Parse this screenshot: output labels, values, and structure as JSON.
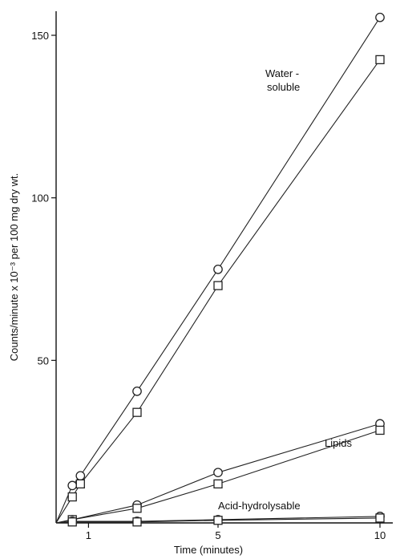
{
  "chart_data": {
    "type": "line",
    "title": "",
    "xlabel": "Time (minutes)",
    "ylabel": "Counts/minute x 10⁻³ per 100 mg dry wt.",
    "x_ticks": [
      1,
      5,
      10
    ],
    "y_ticks": [
      50,
      100,
      150
    ],
    "xlim": [
      0,
      10.2
    ],
    "ylim": [
      0,
      160
    ],
    "grid": false,
    "series": [
      {
        "marker": "circle",
        "x": [
          0.5,
          0.75,
          2.5,
          5,
          10
        ],
        "y": [
          11.5,
          14.5,
          40.5,
          78,
          155.5
        ]
      },
      {
        "marker": "square",
        "x": [
          0.5,
          0.75,
          2.5,
          5,
          10
        ],
        "y": [
          8,
          12,
          34,
          73,
          142.5
        ]
      },
      {
        "marker": "circle",
        "x": [
          0.5,
          2.5,
          5,
          10
        ],
        "y": [
          1,
          5.5,
          15.5,
          30.5
        ]
      },
      {
        "marker": "square",
        "x": [
          0.5,
          2.5,
          5,
          10
        ],
        "y": [
          1,
          4.5,
          12,
          28.5
        ]
      },
      {
        "marker": "circle",
        "x": [
          0.5,
          2.5,
          5,
          10
        ],
        "y": [
          0.5,
          0.5,
          1,
          2
        ]
      },
      {
        "marker": "square",
        "x": [
          0.5,
          2.5,
          5,
          10
        ],
        "y": [
          0.3,
          0.3,
          0.8,
          1.5
        ]
      }
    ],
    "annotations": {
      "water_soluble_1": "Water -",
      "water_soluble_2": "soluble",
      "lipids": "Lipids",
      "acid_hydrolysable": "Acid-hydrolysable"
    }
  }
}
